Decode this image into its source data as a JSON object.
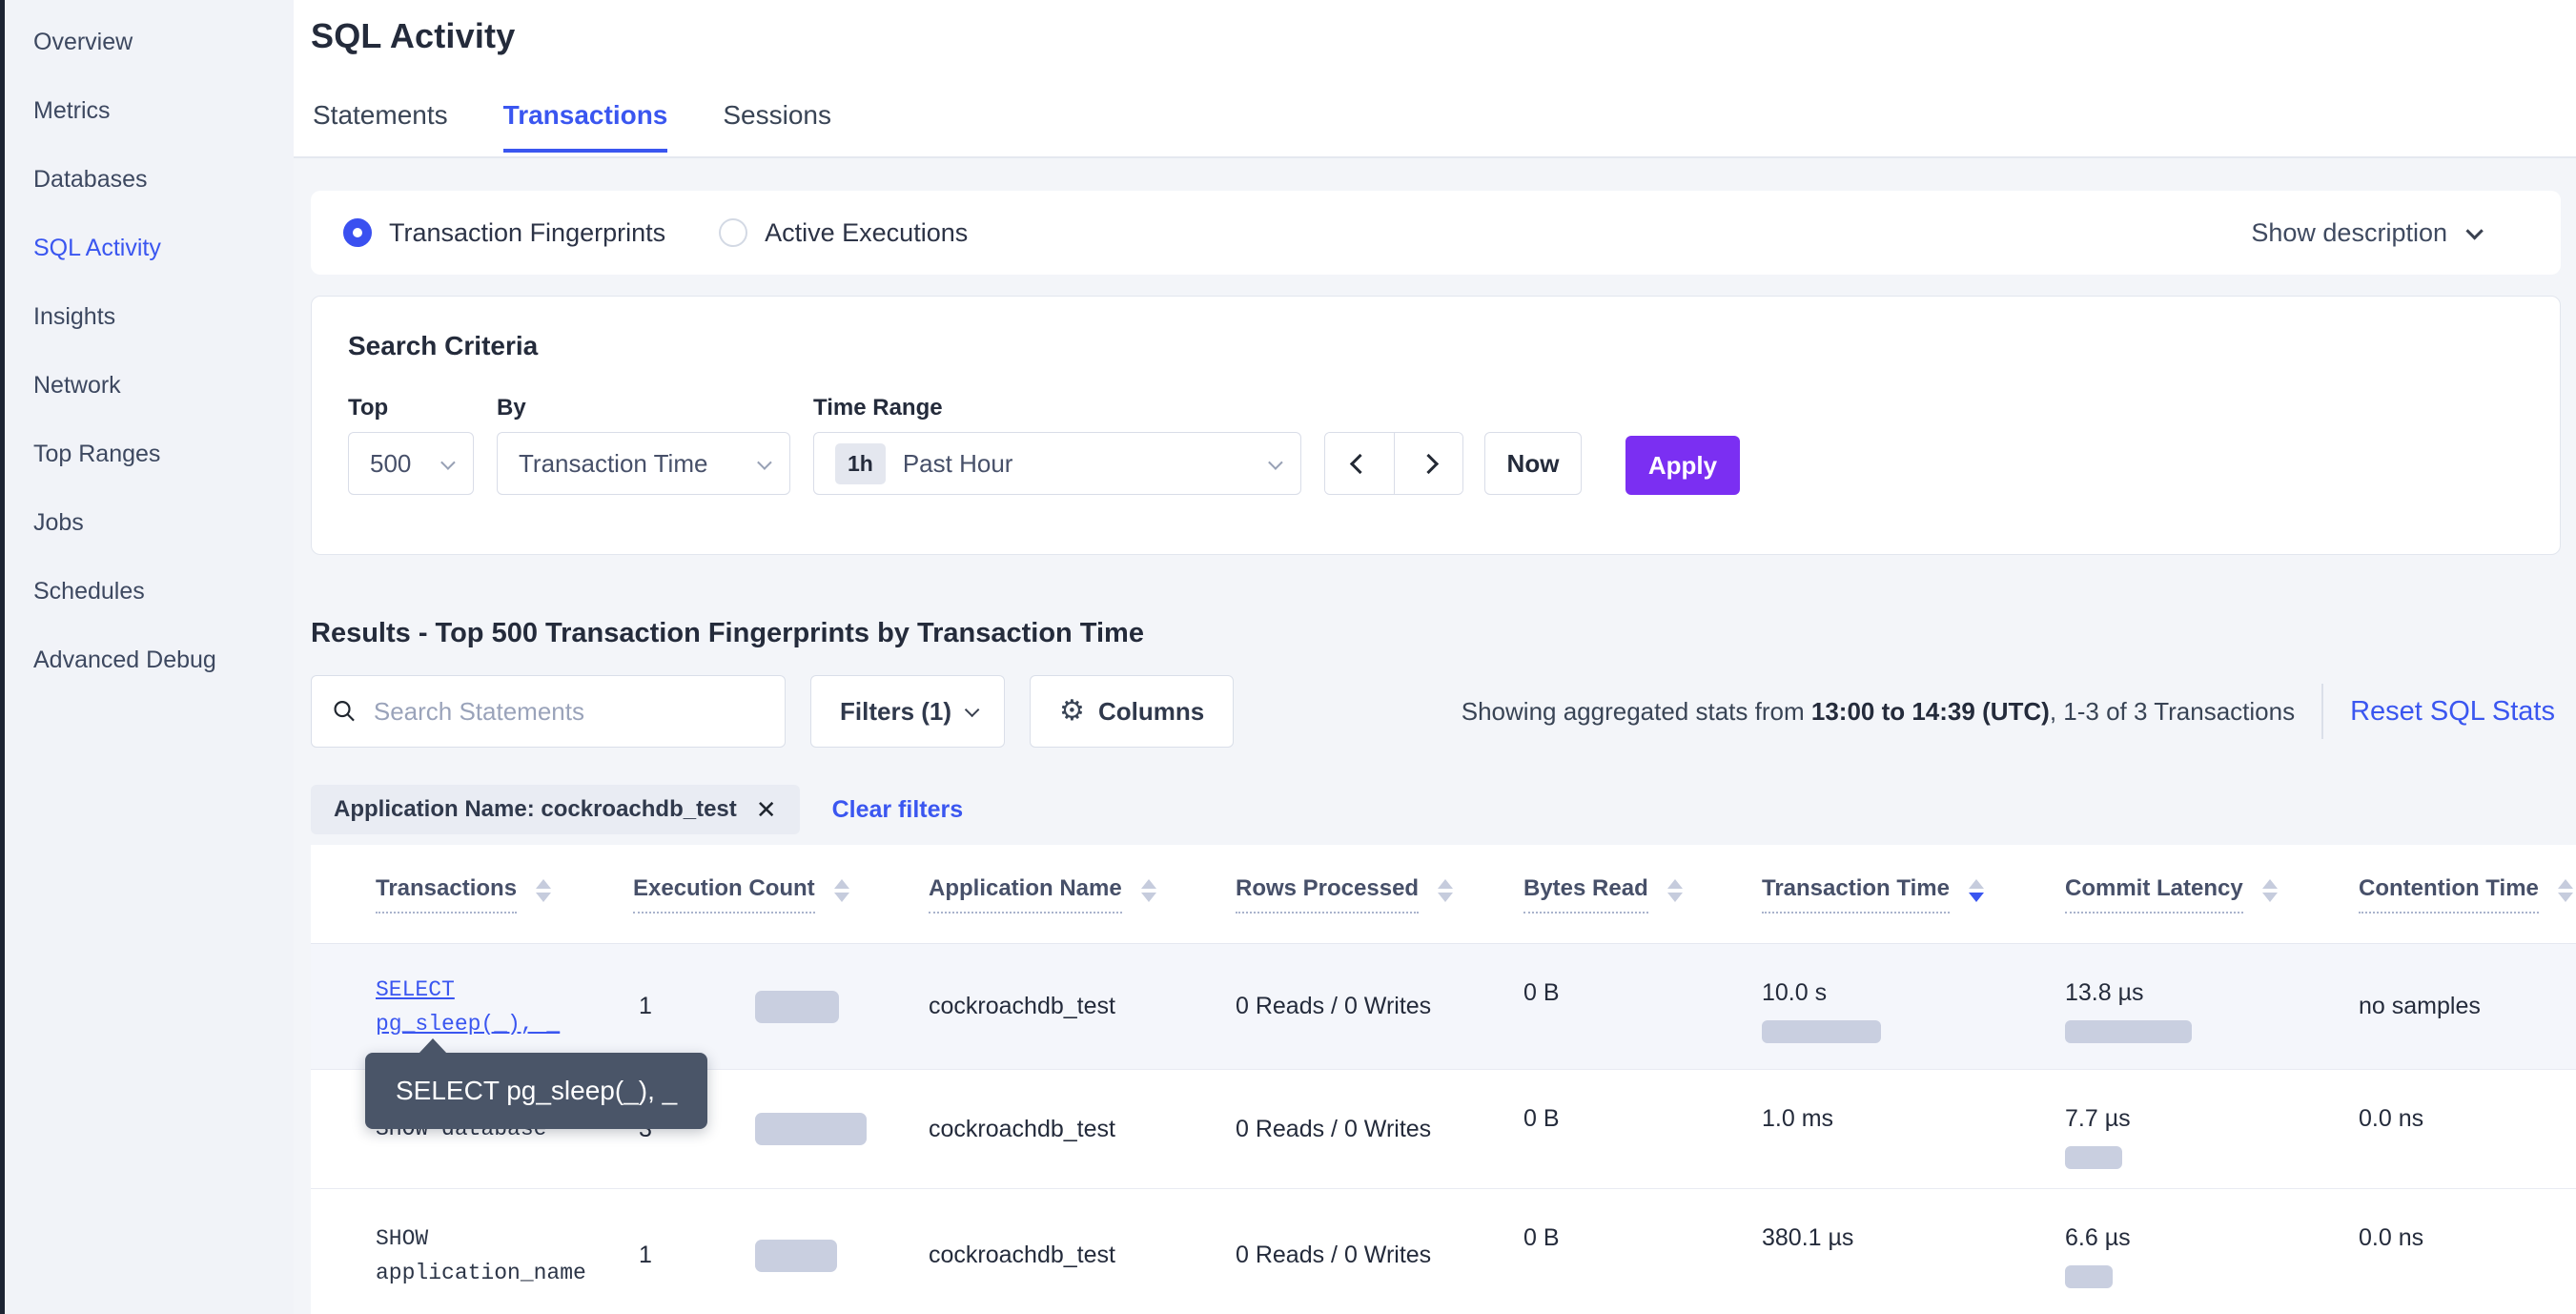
{
  "colors": {
    "accent_blue": "#3a56f0",
    "accent_purple": "#7b2ff2",
    "bar_gray": "#c9cfe0",
    "tooltip_bg": "#4a5568",
    "row_highlight": "#f4f6fb"
  },
  "sidebar": {
    "items": [
      {
        "label": "Overview",
        "active": false
      },
      {
        "label": "Metrics",
        "active": false
      },
      {
        "label": "Databases",
        "active": false
      },
      {
        "label": "SQL Activity",
        "active": true
      },
      {
        "label": "Insights",
        "active": false
      },
      {
        "label": "Network",
        "active": false
      },
      {
        "label": "Top Ranges",
        "active": false
      },
      {
        "label": "Jobs",
        "active": false
      },
      {
        "label": "Schedules",
        "active": false
      },
      {
        "label": "Advanced Debug",
        "active": false
      }
    ]
  },
  "header": {
    "title": "SQL Activity",
    "tabs": [
      {
        "label": "Statements",
        "active": false
      },
      {
        "label": "Transactions",
        "active": true
      },
      {
        "label": "Sessions",
        "active": false
      }
    ]
  },
  "view_toggle": {
    "options": [
      {
        "label": "Transaction Fingerprints",
        "selected": true
      },
      {
        "label": "Active Executions",
        "selected": false
      }
    ],
    "show_description_label": "Show description"
  },
  "search_criteria": {
    "heading": "Search Criteria",
    "top_label": "Top",
    "top_value": "500",
    "by_label": "By",
    "by_value": "Transaction Time",
    "time_range_label": "Time Range",
    "time_badge": "1h",
    "time_value": "Past Hour",
    "now_label": "Now",
    "apply_label": "Apply"
  },
  "results": {
    "heading": "Results - Top 500 Transaction Fingerprints by Transaction Time",
    "search_placeholder": "Search Statements",
    "filters_label": "Filters (1)",
    "columns_label": "Columns",
    "stats_prefix": "Showing aggregated stats from ",
    "stats_bold": "13:00 to 14:39 (UTC)",
    "stats_suffix": ", 1-3 of 3 Transactions",
    "reset_label": "Reset SQL Stats",
    "filter_chip": "Application Name: cockroachdb_test",
    "remove_chip_icon": "✕",
    "clear_filters_label": "Clear filters"
  },
  "tooltip": {
    "text": "SELECT pg_sleep(_), _"
  },
  "table": {
    "columns": [
      {
        "label": "Transactions",
        "sort": "none"
      },
      {
        "label": "Execution Count",
        "sort": "none"
      },
      {
        "label": "Application Name",
        "sort": "none"
      },
      {
        "label": "Rows Processed",
        "sort": "none"
      },
      {
        "label": "Bytes Read",
        "sort": "none"
      },
      {
        "label": "Transaction Time",
        "sort": "desc"
      },
      {
        "label": "Commit Latency",
        "sort": "none"
      },
      {
        "label": "Contention Time",
        "sort": "none"
      }
    ],
    "rows": [
      {
        "transaction": "SELECT pg_sleep(_), _",
        "execution_count": "1",
        "execution_bar": 88,
        "application_name": "cockroachdb_test",
        "rows_processed": "0 Reads / 0 Writes",
        "bytes_read": "0 B",
        "transaction_time": "10.0 s",
        "transaction_time_bar": 125,
        "commit_latency": "13.8 µs",
        "commit_latency_bar": 133,
        "contention_time": "no samples"
      },
      {
        "transaction": "SHOW database",
        "execution_count": "3",
        "execution_bar": 117,
        "application_name": "cockroachdb_test",
        "rows_processed": "0 Reads / 0 Writes",
        "bytes_read": "0 B",
        "transaction_time": "1.0 ms",
        "transaction_time_bar": 0,
        "commit_latency": "7.7 µs",
        "commit_latency_bar": 60,
        "contention_time": "0.0 ns"
      },
      {
        "transaction": "SHOW application_name",
        "execution_count": "1",
        "execution_bar": 86,
        "application_name": "cockroachdb_test",
        "rows_processed": "0 Reads / 0 Writes",
        "bytes_read": "0 B",
        "transaction_time": "380.1 µs",
        "transaction_time_bar": 0,
        "commit_latency": "6.6 µs",
        "commit_latency_bar": 50,
        "contention_time": "0.0 ns"
      }
    ]
  }
}
